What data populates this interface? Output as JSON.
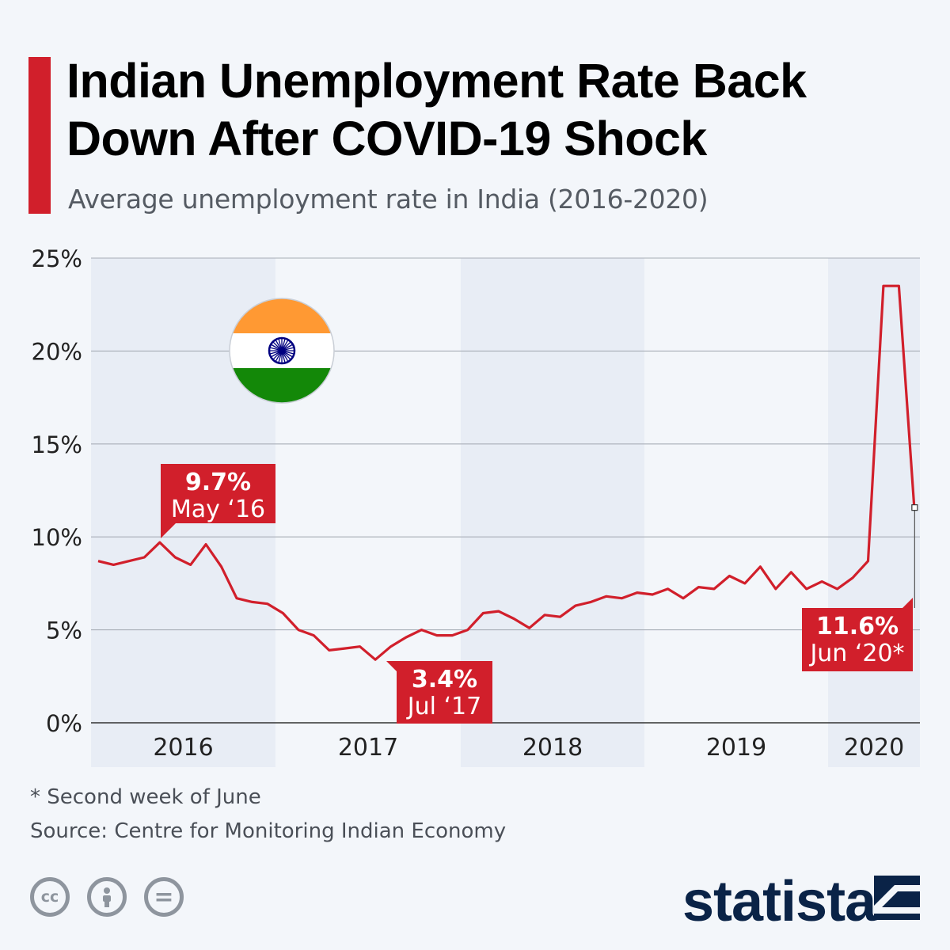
{
  "header": {
    "title_line1": "Indian Unemployment Rate Back",
    "title_line2": "Down After COVID-19 Shock",
    "subtitle": "Average unemployment rate in India (2016-2020)"
  },
  "chart_data": {
    "type": "line",
    "x": [
      "Jan 2016",
      "Feb 2016",
      "Mar 2016",
      "Apr 2016",
      "May 2016",
      "Jun 2016",
      "Jul 2016",
      "Aug 2016",
      "Sep 2016",
      "Oct 2016",
      "Nov 2016",
      "Dec 2016",
      "Jan 2017",
      "Feb 2017",
      "Mar 2017",
      "Apr 2017",
      "May 2017",
      "Jun 2017",
      "Jul 2017",
      "Aug 2017",
      "Sep 2017",
      "Oct 2017",
      "Nov 2017",
      "Dec 2017",
      "Jan 2018",
      "Feb 2018",
      "Mar 2018",
      "Apr 2018",
      "May 2018",
      "Jun 2018",
      "Jul 2018",
      "Aug 2018",
      "Sep 2018",
      "Oct 2018",
      "Nov 2018",
      "Dec 2018",
      "Jan 2019",
      "Feb 2019",
      "Mar 2019",
      "Apr 2019",
      "May 2019",
      "Jun 2019",
      "Jul 2019",
      "Aug 2019",
      "Sep 2019",
      "Oct 2019",
      "Nov 2019",
      "Dec 2019",
      "Jan 2020",
      "Feb 2020",
      "Mar 2020",
      "Apr 2020",
      "May 2020",
      "Jun 2020"
    ],
    "series": [
      {
        "values": [
          8.7,
          8.5,
          8.7,
          8.9,
          9.7,
          8.9,
          8.5,
          9.6,
          8.4,
          6.7,
          6.5,
          6.4,
          5.9,
          5.0,
          4.7,
          3.9,
          4.0,
          4.1,
          3.4,
          4.1,
          4.6,
          5.0,
          4.7,
          4.7,
          5.0,
          5.9,
          6.0,
          5.6,
          5.1,
          5.8,
          5.7,
          6.3,
          6.5,
          6.8,
          6.7,
          7.0,
          6.9,
          7.2,
          6.7,
          7.3,
          7.2,
          7.9,
          7.5,
          8.4,
          7.2,
          8.1,
          7.2,
          7.6,
          7.2,
          7.8,
          8.7,
          23.5,
          23.5,
          11.6
        ],
        "color": "#d11f2b"
      }
    ],
    "year_labels": [
      "2016",
      "2017",
      "2018",
      "2019",
      "2020"
    ],
    "y_ticks": [
      "0%",
      "5%",
      "10%",
      "15%",
      "20%",
      "25%"
    ],
    "ylim": [
      0,
      25
    ],
    "grid": true,
    "annotations": [
      {
        "value": "9.7%",
        "label": "May ‘16",
        "x": "May 2016"
      },
      {
        "value": "3.4%",
        "label": "Jul ‘17",
        "x": "Jul 2017"
      },
      {
        "value": "11.6%",
        "label": "Jun ‘20*",
        "x": "Jun 2020"
      }
    ]
  },
  "footer": {
    "footnote": "* Second week of June",
    "source": "Source: Centre for Monitoring Indian Economy",
    "license_icons": [
      "creative-commons-icon",
      "attribution-icon",
      "no-derivatives-icon"
    ],
    "license_texts": [
      "cc",
      "="
    ],
    "brand": "statista"
  },
  "colors": {
    "accent": "#d11f2b",
    "band": "#e8edf5",
    "brand": "#0a2347",
    "flag_saffron": "#ff9933",
    "flag_green": "#138808",
    "flag_chakra": "#000080"
  }
}
